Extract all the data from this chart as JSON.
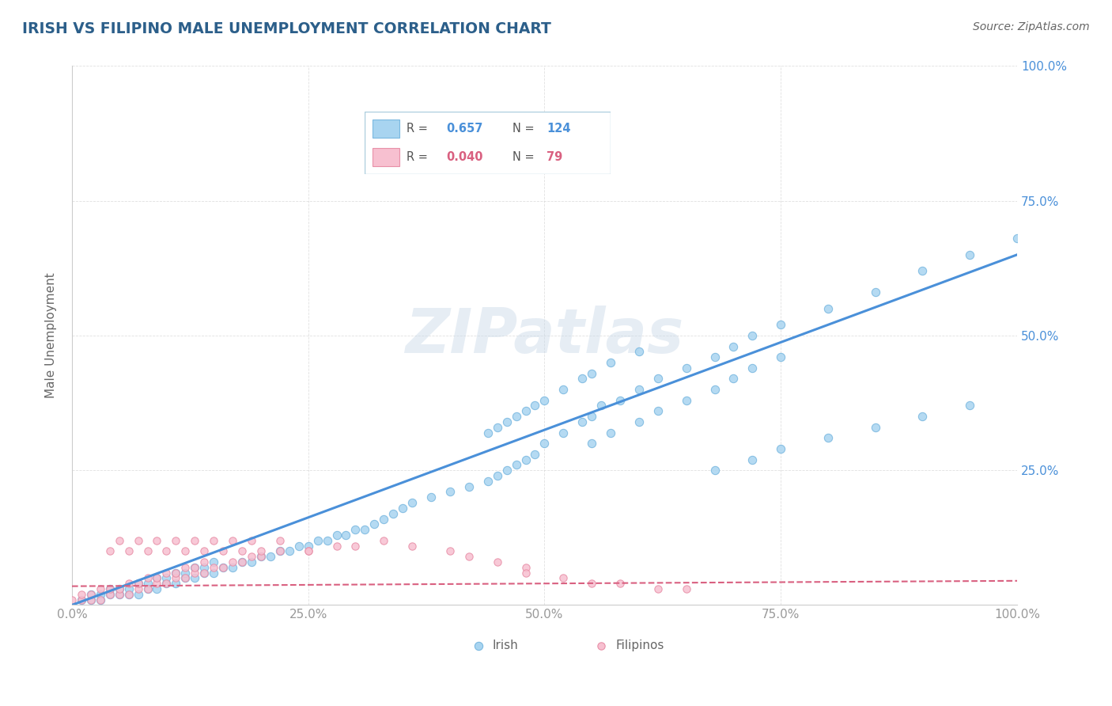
{
  "title": "IRISH VS FILIPINO MALE UNEMPLOYMENT CORRELATION CHART",
  "source": "Source: ZipAtlas.com",
  "ylabel": "Male Unemployment",
  "xlabel": "",
  "watermark": "ZIPatlas",
  "legend_irish": "Irish",
  "legend_filipino": "Filipinos",
  "irish_R": "0.657",
  "irish_N": "124",
  "filipino_R": "0.040",
  "filipino_N": "79",
  "irish_color": "#a8d4f0",
  "irish_edge_color": "#7ab8e0",
  "filipino_color": "#f7c0d0",
  "filipino_edge_color": "#e890a8",
  "irish_line_color": "#4a90d9",
  "filipino_line_color": "#d96080",
  "background_color": "#ffffff",
  "grid_color": "#cccccc",
  "title_color": "#2c5f8a",
  "right_tick_color": "#4a90d9",
  "axis_label_color": "#666666",
  "tick_label_color": "#999999",
  "xlim": [
    0.0,
    1.0
  ],
  "ylim": [
    0.0,
    1.0
  ],
  "xticks": [
    0.0,
    0.25,
    0.5,
    0.75,
    1.0
  ],
  "yticks": [
    0.0,
    0.25,
    0.5,
    0.75,
    1.0
  ],
  "xticklabels": [
    "0.0%",
    "25.0%",
    "50.0%",
    "75.0%",
    "100.0%"
  ],
  "right_yticklabels": [
    "25.0%",
    "50.0%",
    "75.0%",
    "100.0%"
  ],
  "right_yticks": [
    0.25,
    0.5,
    0.75,
    1.0
  ],
  "irish_line_x": [
    0.0,
    1.0
  ],
  "irish_line_y": [
    0.0,
    0.65
  ],
  "filipino_line_x": [
    0.0,
    1.0
  ],
  "filipino_line_y": [
    0.035,
    0.045
  ],
  "irish_scatter_x": [
    0.01,
    0.02,
    0.02,
    0.03,
    0.03,
    0.04,
    0.04,
    0.05,
    0.05,
    0.06,
    0.06,
    0.07,
    0.07,
    0.08,
    0.08,
    0.09,
    0.09,
    0.1,
    0.1,
    0.11,
    0.11,
    0.12,
    0.12,
    0.13,
    0.13,
    0.14,
    0.14,
    0.15,
    0.15,
    0.16,
    0.17,
    0.18,
    0.19,
    0.2,
    0.21,
    0.22,
    0.23,
    0.24,
    0.25,
    0.26,
    0.27,
    0.28,
    0.29,
    0.3,
    0.31,
    0.32,
    0.33,
    0.34,
    0.35,
    0.36,
    0.38,
    0.4,
    0.42,
    0.44,
    0.45,
    0.46,
    0.47,
    0.48,
    0.49,
    0.5,
    0.52,
    0.54,
    0.55,
    0.56,
    0.58,
    0.6,
    0.62,
    0.65,
    0.68,
    0.7,
    0.72,
    0.75,
    0.8,
    0.85,
    0.9,
    0.95,
    1.0,
    0.44,
    0.45,
    0.46,
    0.47,
    0.48,
    0.49,
    0.5,
    0.52,
    0.54,
    0.55,
    0.57,
    0.6,
    0.55,
    0.57,
    0.6,
    0.62,
    0.65,
    0.68,
    0.7,
    0.72,
    0.75,
    0.68,
    0.72,
    0.75,
    0.8,
    0.85,
    0.9,
    0.95
  ],
  "irish_scatter_y": [
    0.01,
    0.01,
    0.02,
    0.01,
    0.02,
    0.02,
    0.03,
    0.02,
    0.03,
    0.02,
    0.03,
    0.02,
    0.04,
    0.03,
    0.04,
    0.03,
    0.05,
    0.04,
    0.05,
    0.04,
    0.06,
    0.05,
    0.06,
    0.05,
    0.07,
    0.06,
    0.07,
    0.06,
    0.08,
    0.07,
    0.07,
    0.08,
    0.08,
    0.09,
    0.09,
    0.1,
    0.1,
    0.11,
    0.11,
    0.12,
    0.12,
    0.13,
    0.13,
    0.14,
    0.14,
    0.15,
    0.16,
    0.17,
    0.18,
    0.19,
    0.2,
    0.21,
    0.22,
    0.23,
    0.24,
    0.25,
    0.26,
    0.27,
    0.28,
    0.3,
    0.32,
    0.34,
    0.35,
    0.37,
    0.38,
    0.4,
    0.42,
    0.44,
    0.46,
    0.48,
    0.5,
    0.52,
    0.55,
    0.58,
    0.62,
    0.65,
    0.68,
    0.32,
    0.33,
    0.34,
    0.35,
    0.36,
    0.37,
    0.38,
    0.4,
    0.42,
    0.43,
    0.45,
    0.47,
    0.3,
    0.32,
    0.34,
    0.36,
    0.38,
    0.4,
    0.42,
    0.44,
    0.46,
    0.25,
    0.27,
    0.29,
    0.31,
    0.33,
    0.35,
    0.37
  ],
  "filipino_scatter_x": [
    0.0,
    0.01,
    0.01,
    0.02,
    0.02,
    0.03,
    0.03,
    0.04,
    0.04,
    0.05,
    0.05,
    0.06,
    0.06,
    0.07,
    0.07,
    0.08,
    0.08,
    0.09,
    0.09,
    0.1,
    0.1,
    0.11,
    0.11,
    0.12,
    0.12,
    0.13,
    0.13,
    0.14,
    0.14,
    0.15,
    0.16,
    0.17,
    0.18,
    0.19,
    0.2,
    0.22,
    0.25,
    0.28,
    0.3,
    0.33,
    0.36,
    0.4,
    0.42,
    0.45,
    0.48,
    0.04,
    0.05,
    0.06,
    0.07,
    0.08,
    0.09,
    0.1,
    0.11,
    0.12,
    0.13,
    0.14,
    0.15,
    0.16,
    0.17,
    0.18,
    0.19,
    0.2,
    0.22,
    0.25,
    0.48,
    0.52,
    0.55,
    0.58,
    0.62,
    0.65
  ],
  "filipino_scatter_y": [
    0.01,
    0.01,
    0.02,
    0.01,
    0.02,
    0.01,
    0.03,
    0.02,
    0.03,
    0.02,
    0.03,
    0.02,
    0.04,
    0.03,
    0.04,
    0.03,
    0.05,
    0.04,
    0.05,
    0.04,
    0.06,
    0.05,
    0.06,
    0.05,
    0.07,
    0.06,
    0.07,
    0.06,
    0.08,
    0.07,
    0.07,
    0.08,
    0.08,
    0.09,
    0.09,
    0.1,
    0.1,
    0.11,
    0.11,
    0.12,
    0.11,
    0.1,
    0.09,
    0.08,
    0.07,
    0.1,
    0.12,
    0.1,
    0.12,
    0.1,
    0.12,
    0.1,
    0.12,
    0.1,
    0.12,
    0.1,
    0.12,
    0.1,
    0.12,
    0.1,
    0.12,
    0.1,
    0.12,
    0.1,
    0.06,
    0.05,
    0.04,
    0.04,
    0.03,
    0.03
  ]
}
